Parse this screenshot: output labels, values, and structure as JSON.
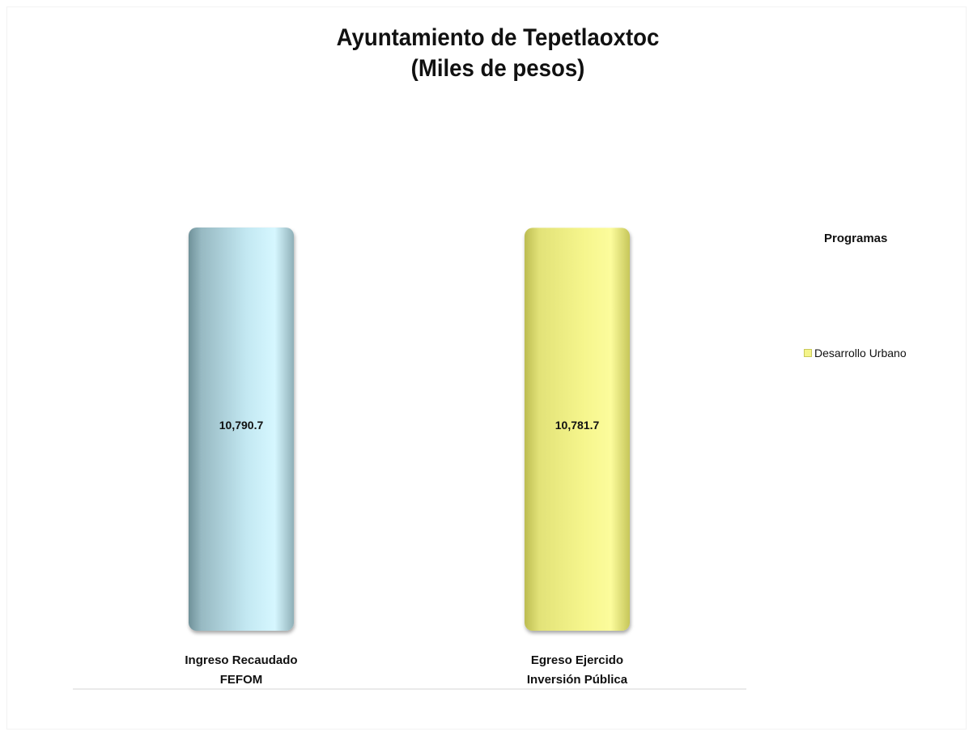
{
  "chart_data": {
    "type": "bar",
    "title": [
      "Ayuntamiento de Tepetlaoxtoc",
      "(Miles de pesos)"
    ],
    "categories": [
      [
        "Ingreso Recaudado",
        "FEFOM"
      ],
      [
        "Egreso Ejercido",
        "Inversión Pública"
      ]
    ],
    "values": [
      10790.7,
      10781.7
    ],
    "value_labels": [
      "10,790.7",
      "10,781.7"
    ],
    "bar_colors": [
      "#c6ebf6",
      "#f6f68a"
    ],
    "legend": {
      "title": "Programas",
      "entries": [
        {
          "name": "Desarrollo Urbano",
          "color": "#f4f48a"
        }
      ],
      "placement": "right"
    },
    "ylim": [
      0,
      10790.7
    ],
    "grid": false
  }
}
